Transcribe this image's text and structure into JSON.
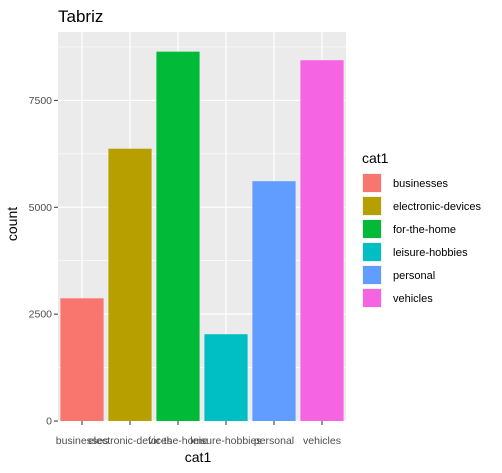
{
  "chart_data": {
    "type": "bar",
    "title": "Tabriz",
    "xlabel": "cat1",
    "ylabel": "count",
    "categories": [
      "businesses",
      "electronic-devices",
      "for-the-home",
      "leisure-hobbies",
      "personal",
      "vehicles"
    ],
    "values": [
      2870,
      6370,
      8640,
      2030,
      5610,
      8440
    ],
    "colors": [
      "#F8766D",
      "#B79F00",
      "#00BA38",
      "#00BFC4",
      "#619CFF",
      "#F564E3"
    ],
    "ylim": [
      0,
      9100
    ],
    "yticks": [
      0,
      2500,
      5000,
      7500
    ],
    "ytick_labels": [
      "0",
      "2500",
      "5000",
      "7500"
    ],
    "grid": true,
    "panel_background": "#EBEBEB",
    "legend": {
      "title": "cat1",
      "position": "right",
      "items": [
        "businesses",
        "electronic-devices",
        "for-the-home",
        "leisure-hobbies",
        "personal",
        "vehicles"
      ]
    }
  }
}
